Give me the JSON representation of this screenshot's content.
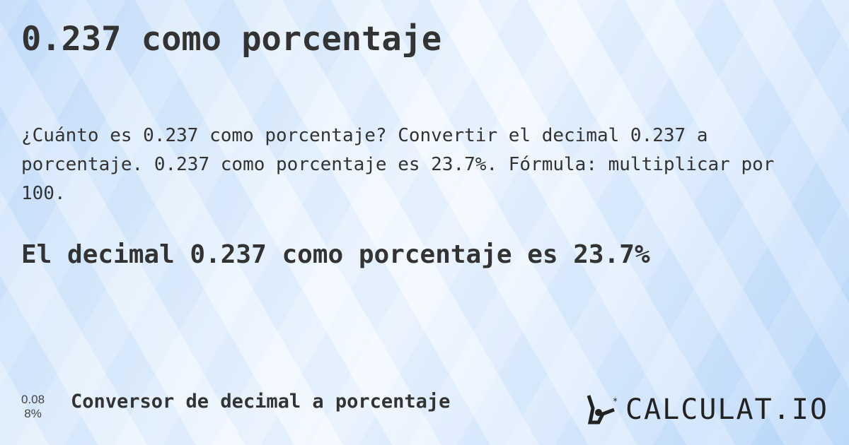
{
  "title": "0.237 como porcentaje",
  "description": "¿Cuánto es 0.237 como porcentaje? Convertir el decimal 0.237 a porcentaje. 0.237 como porcentaje es 23.7%. Fórmula: multiplicar por 100.",
  "result": "El decimal 0.237 como porcentaje es 23.7%",
  "footer": {
    "icon_top": "0.08",
    "icon_bottom": "8%",
    "link": "Conversor de decimal a porcentaje",
    "logo": "CALCULAT.IO"
  }
}
